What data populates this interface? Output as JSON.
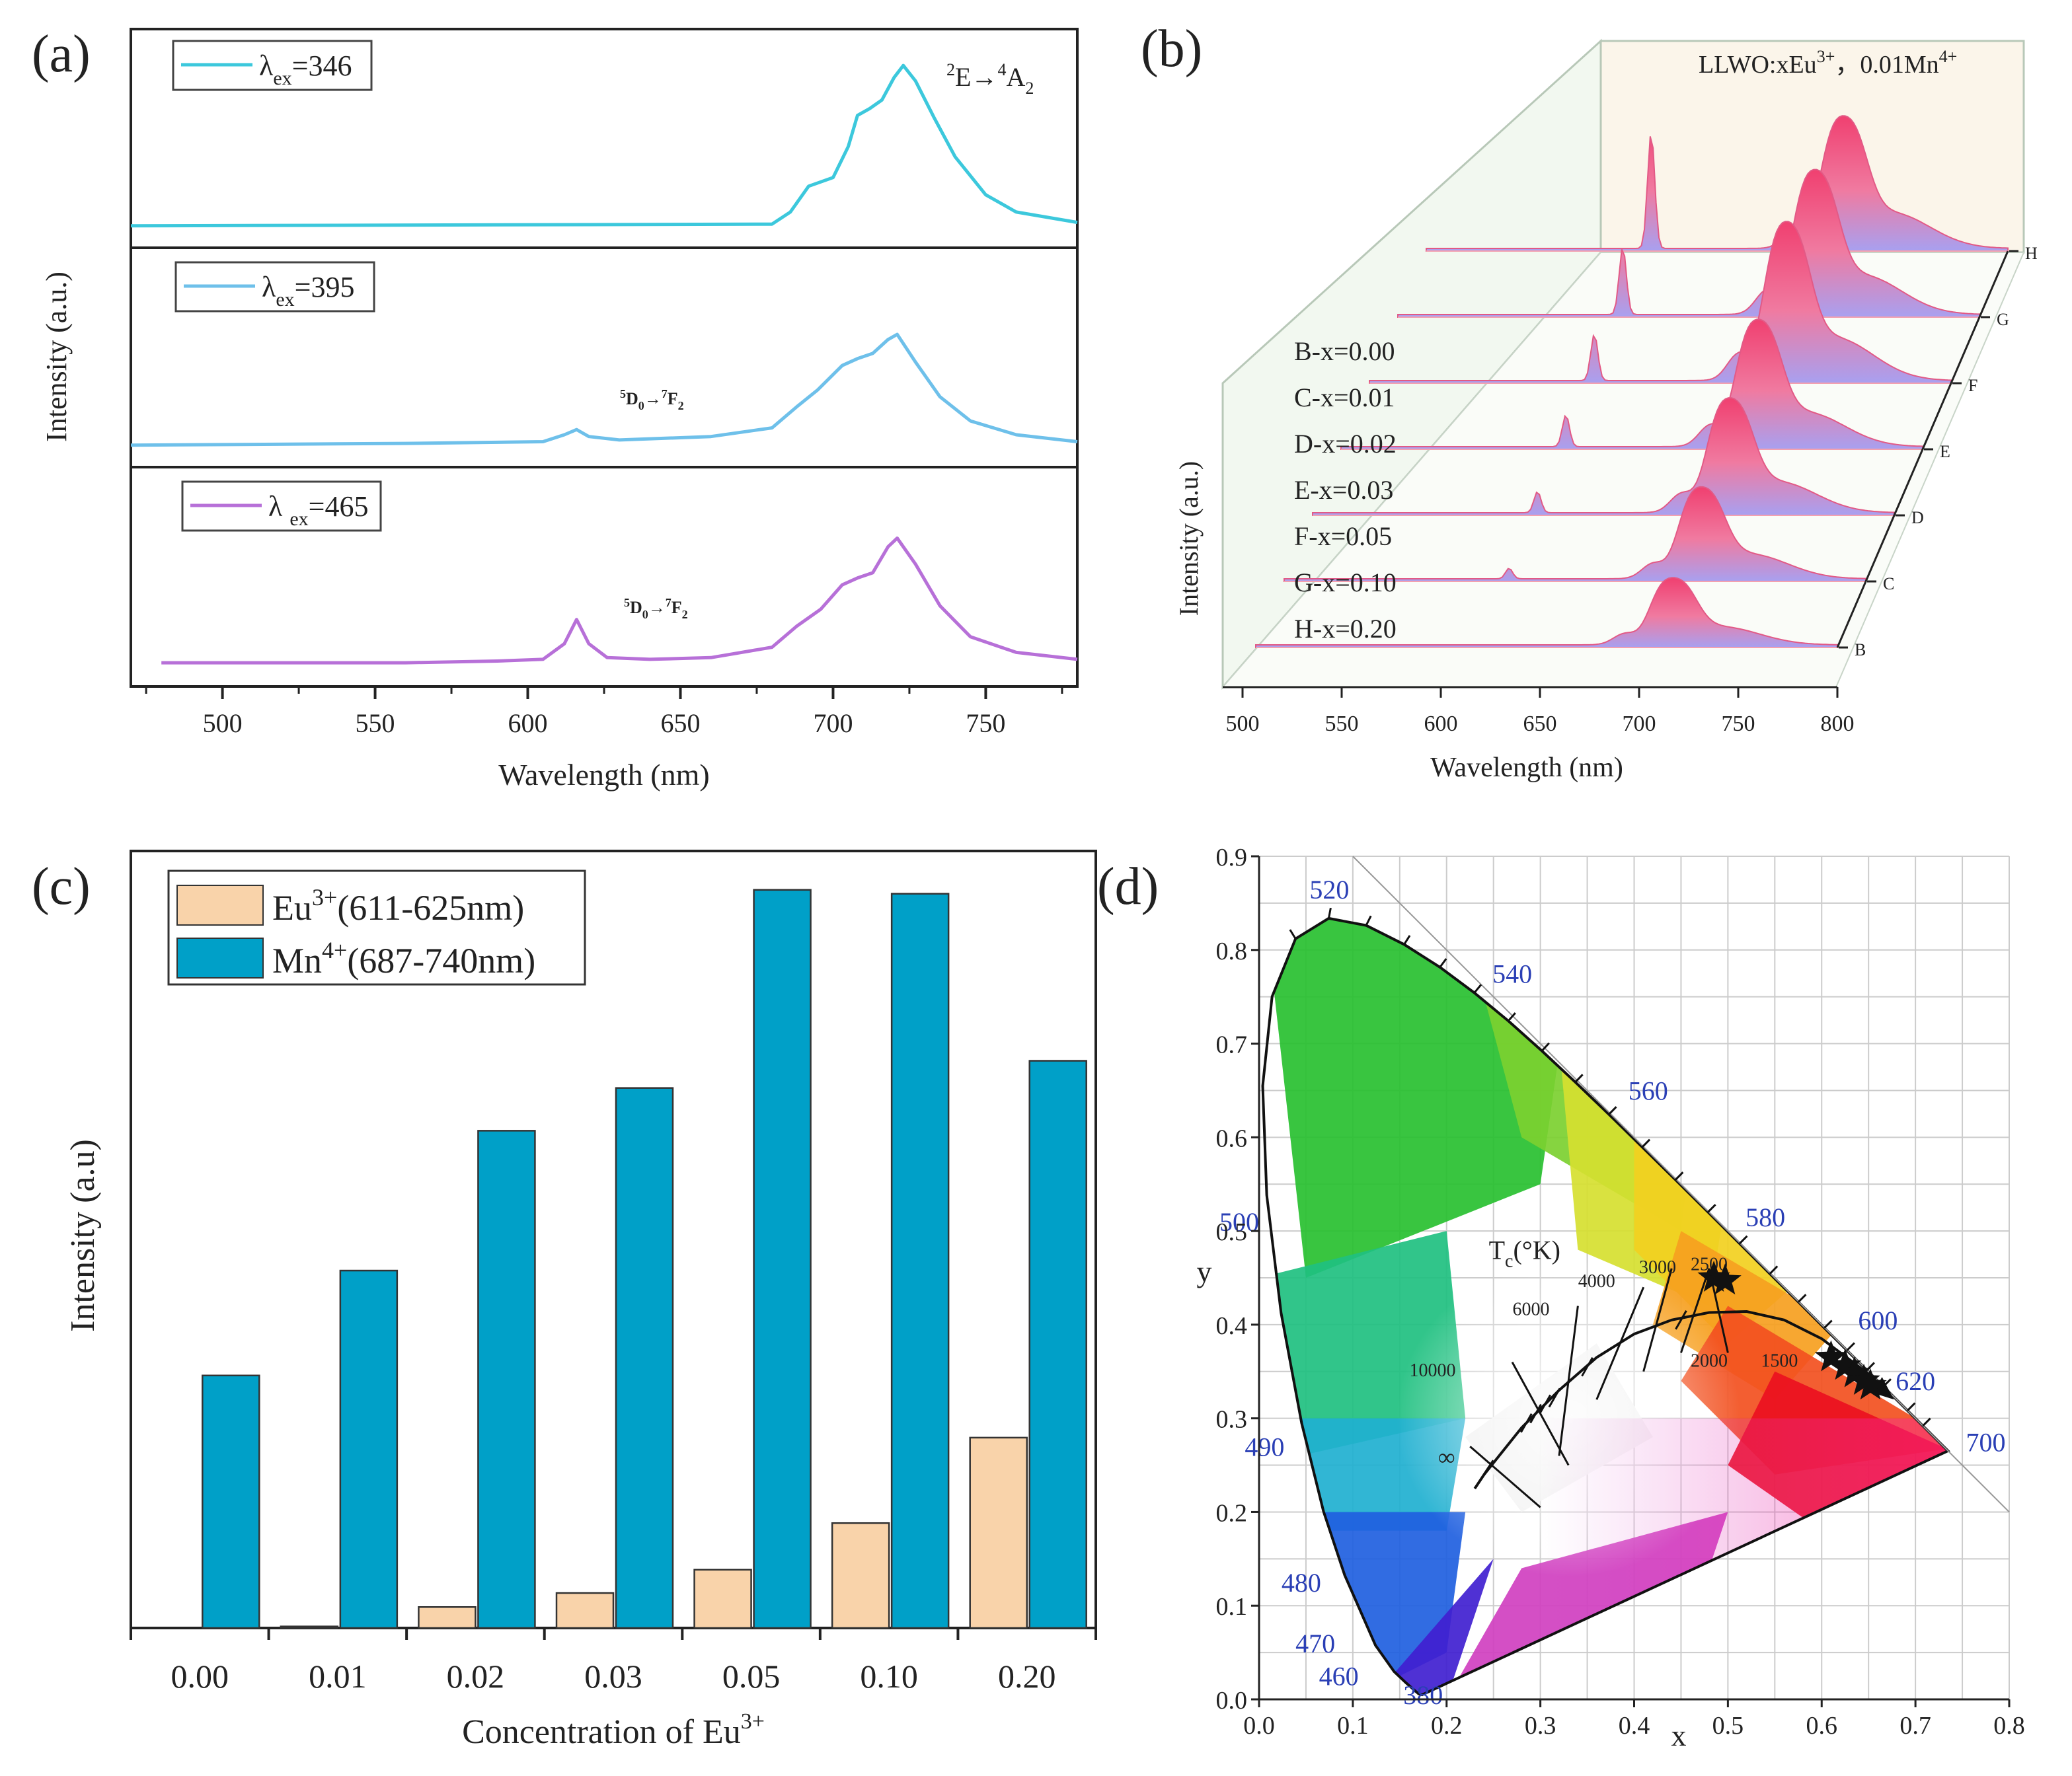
{
  "colors": {
    "cyan": "#3cc8dc",
    "skyblue": "#6ec0ea",
    "violet": "#b770d8",
    "peach": "#f9d3aa",
    "teal": "#00a0c8",
    "pink": "#f06080",
    "lilac": "#b8a8f0",
    "panel": "#f4f8f0",
    "beige": "#faf4e8",
    "gridgray": "#cccccc"
  },
  "chart_data": [
    {
      "panel": "(a)",
      "type": "line",
      "xlabel": "Wavelength (nm)",
      "ylabel": "Intensity (a.u.)",
      "xlim": [
        470,
        780
      ],
      "xticks": [
        "500",
        "550",
        "600",
        "650",
        "700",
        "750"
      ],
      "subplots": [
        {
          "legend": "λex=346",
          "legend_main": "λ",
          "legend_sub": "ex",
          "legend_value": "=346",
          "annotation": "2E→4A2",
          "ann_parts": [
            "2",
            "E→",
            "4",
            "A",
            "2"
          ],
          "x": [
            470,
            680,
            686,
            692,
            700,
            705,
            708,
            712,
            716,
            720,
            723,
            727,
            733,
            740,
            750,
            760,
            780
          ],
          "y": [
            0.02,
            0.03,
            0.1,
            0.25,
            0.3,
            0.48,
            0.66,
            0.7,
            0.75,
            0.88,
            0.95,
            0.86,
            0.65,
            0.42,
            0.2,
            0.1,
            0.04
          ]
        },
        {
          "legend": "λex=395",
          "legend_main": "λ",
          "legend_sub": "ex",
          "legend_value": "=395",
          "annotation": "5D0→7F2",
          "ann_parts": [
            "5",
            "D",
            "0",
            "→",
            "7",
            "F",
            "2"
          ],
          "x": [
            470,
            560,
            605,
            612,
            616,
            620,
            630,
            660,
            680,
            688,
            695,
            703,
            708,
            713,
            718,
            721,
            727,
            735,
            745,
            760,
            780
          ],
          "y": [
            0.02,
            0.03,
            0.04,
            0.08,
            0.11,
            0.07,
            0.05,
            0.07,
            0.12,
            0.24,
            0.34,
            0.48,
            0.52,
            0.55,
            0.63,
            0.66,
            0.5,
            0.3,
            0.16,
            0.08,
            0.04
          ]
        },
        {
          "legend": "λ ex=465",
          "legend_main": "λ ",
          "legend_sub": "ex",
          "legend_value": "=465",
          "annotation": "5D0→7F2",
          "ann_parts": [
            "5",
            "D",
            "0",
            "→",
            "7",
            "F",
            "2"
          ],
          "x": [
            480,
            560,
            590,
            605,
            612,
            616,
            620,
            626,
            640,
            660,
            680,
            688,
            696,
            703,
            708,
            713,
            718,
            721,
            727,
            735,
            745,
            760,
            780
          ],
          "y": [
            0.03,
            0.03,
            0.04,
            0.05,
            0.14,
            0.28,
            0.14,
            0.06,
            0.05,
            0.06,
            0.12,
            0.24,
            0.34,
            0.48,
            0.52,
            0.55,
            0.7,
            0.75,
            0.6,
            0.36,
            0.18,
            0.09,
            0.05
          ]
        }
      ]
    },
    {
      "panel": "(b)",
      "type": "area",
      "title": "LLWO:xEu3+，0.01Mn4+",
      "title_parts": [
        "LLWO:xEu",
        "3+",
        "，0.01Mn",
        "4+"
      ],
      "xlabel": "Wavelength (nm)",
      "ylabel": "Intensity (a.u.)",
      "xticks": [
        "500",
        "550",
        "600",
        "650",
        "700",
        "750",
        "800"
      ],
      "series_names": [
        "B",
        "C",
        "D",
        "E",
        "F",
        "G",
        "H"
      ],
      "legend": [
        "B-x=0.00",
        "C-x=0.01",
        "D-x=0.02",
        "E-x=0.03",
        "F-x=0.05",
        "G-x=0.10",
        "H-x=0.20"
      ],
      "eu_peak": [
        0.0,
        0.05,
        0.1,
        0.15,
        0.22,
        0.32,
        0.55
      ],
      "mn_peak": [
        0.38,
        0.52,
        0.65,
        0.72,
        0.9,
        0.82,
        0.75
      ]
    },
    {
      "panel": "(c)",
      "type": "bar",
      "xlabel": "Concentration of Eu3+",
      "xlabel_main": "Concentration of Eu",
      "xlabel_sup": "3+",
      "ylabel": "Intensity (a.u)",
      "categories": [
        "0.00",
        "0.01",
        "0.02",
        "0.03",
        "0.05",
        "0.10",
        "0.20"
      ],
      "ylim": [
        0,
        100
      ],
      "series": [
        {
          "name": "Eu3+(611-625nm)",
          "label_main": "Eu",
          "label_sup": "3+",
          "label_rest": "(611-625nm)",
          "values": [
            0,
            0.2,
            2.7,
            4.5,
            7.5,
            13.5,
            24.5
          ]
        },
        {
          "name": "Mn4+(687-740nm)",
          "label_main": "Mn",
          "label_sup": "4+",
          "label_rest": "(687-740nm)",
          "values": [
            32.5,
            46,
            64,
            69.5,
            95,
            94.5,
            73
          ]
        }
      ]
    },
    {
      "panel": "(d)",
      "type": "scatter",
      "xlabel": "x",
      "ylabel": "y",
      "xlim": [
        0,
        0.8
      ],
      "ylim": [
        0,
        0.9
      ],
      "xticks": [
        "0.0",
        "0.1",
        "0.2",
        "0.3",
        "0.4",
        "0.5",
        "0.6",
        "0.7",
        "0.8"
      ],
      "yticks": [
        "0.0",
        "0.1",
        "0.2",
        "0.3",
        "0.4",
        "0.5",
        "0.6",
        "0.7",
        "0.8",
        "0.9"
      ],
      "wavelength_labels": [
        "380",
        "460",
        "470",
        "480",
        "490",
        "500",
        "520",
        "540",
        "560",
        "580",
        "600",
        "620",
        "700"
      ],
      "cct_label": "Tc(°K)",
      "cct_main": "T",
      "cct_sub": "c",
      "cct_rest": "(°K)",
      "cct_values": [
        "10000",
        "6000",
        "4000",
        "3000",
        "2500",
        "2000",
        "1500",
        "∞"
      ],
      "stars": [
        [
          0.485,
          0.45
        ],
        [
          0.497,
          0.447
        ],
        [
          0.61,
          0.365
        ],
        [
          0.625,
          0.356
        ],
        [
          0.635,
          0.348
        ],
        [
          0.645,
          0.34
        ],
        [
          0.652,
          0.335
        ]
      ]
    }
  ],
  "panel_labels": [
    "(a)",
    "(b)",
    "(c)",
    "(d)"
  ]
}
